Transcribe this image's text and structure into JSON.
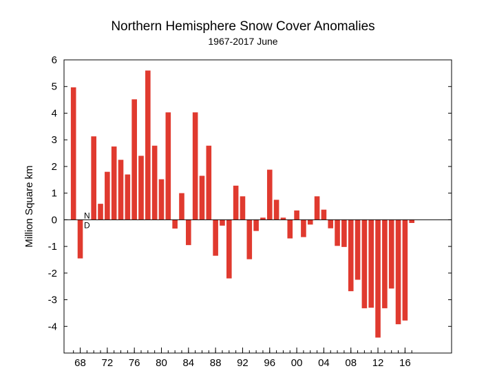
{
  "chart_data": {
    "type": "bar",
    "title": "Northern Hemisphere Snow Cover Anomalies",
    "subtitle": "1967-2017 June",
    "xlabel": "",
    "ylabel": "Million Square km",
    "ylim": [
      -5,
      6
    ],
    "yticks": [
      6,
      5,
      4,
      3,
      2,
      1,
      0,
      -1,
      -2,
      -3,
      -4
    ],
    "xtick_labels": [
      {
        "year": 1968,
        "label": "68"
      },
      {
        "year": 1972,
        "label": "72"
      },
      {
        "year": 1976,
        "label": "76"
      },
      {
        "year": 1980,
        "label": "80"
      },
      {
        "year": 1984,
        "label": "84"
      },
      {
        "year": 1988,
        "label": "88"
      },
      {
        "year": 1992,
        "label": "92"
      },
      {
        "year": 1996,
        "label": "96"
      },
      {
        "year": 2000,
        "label": "00"
      },
      {
        "year": 2004,
        "label": "04"
      },
      {
        "year": 2008,
        "label": "08"
      },
      {
        "year": 2012,
        "label": "12"
      },
      {
        "year": 2016,
        "label": "16"
      }
    ],
    "x": [
      1967,
      1968,
      1969,
      1970,
      1971,
      1972,
      1973,
      1974,
      1975,
      1976,
      1977,
      1978,
      1979,
      1980,
      1981,
      1982,
      1983,
      1984,
      1985,
      1986,
      1987,
      1988,
      1989,
      1990,
      1991,
      1992,
      1993,
      1994,
      1995,
      1996,
      1997,
      1998,
      1999,
      2000,
      2001,
      2002,
      2003,
      2004,
      2005,
      2006,
      2007,
      2008,
      2009,
      2010,
      2011,
      2012,
      2013,
      2014,
      2015,
      2016,
      2017
    ],
    "values": [
      4.97,
      -1.45,
      null,
      3.13,
      0.6,
      1.8,
      2.75,
      2.25,
      1.7,
      4.52,
      2.4,
      5.6,
      2.78,
      1.52,
      4.03,
      -0.33,
      1.0,
      -0.95,
      4.03,
      1.65,
      2.78,
      -1.35,
      -0.22,
      -2.2,
      1.28,
      0.88,
      -1.48,
      -0.42,
      0.08,
      1.88,
      0.75,
      0.08,
      -0.7,
      0.35,
      -0.65,
      -0.18,
      0.88,
      0.38,
      -0.32,
      -0.98,
      -1.02,
      -2.68,
      -2.25,
      -3.32,
      -3.3,
      -4.42,
      -3.32,
      -2.58,
      -3.92,
      -3.78,
      -0.12
    ],
    "missing_label": [
      "N",
      "D"
    ],
    "bar_color": "#e03a2f",
    "grid": false,
    "legend": "none"
  }
}
